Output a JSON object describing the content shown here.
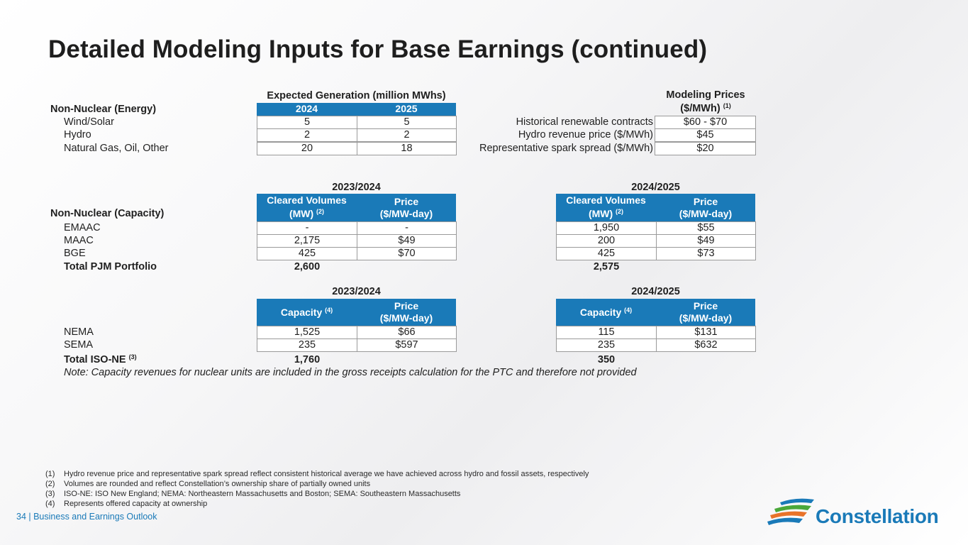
{
  "title": "Detailed Modeling Inputs for Base Earnings (continued)",
  "energy": {
    "section_label": "Non-Nuclear (Energy)",
    "group_header": "Expected Generation (million MWhs)",
    "years": [
      "2024",
      "2025"
    ],
    "rows": [
      {
        "label": "Wind/Solar",
        "v2024": "5",
        "v2025": "5"
      },
      {
        "label": "Hydro",
        "v2024": "2",
        "v2025": "2"
      },
      {
        "label": "Natural Gas, Oil, Other",
        "v2024": "20",
        "v2025": "18"
      }
    ]
  },
  "prices": {
    "header_line1": "Modeling Prices",
    "header_line2": "($/MWh)",
    "header_sup": "(1)",
    "rows": [
      {
        "label": "Historical renewable contracts",
        "value": "$60 - $70"
      },
      {
        "label": "Hydro revenue price ($/MWh)",
        "value": "$45"
      },
      {
        "label": "Representative spark spread ($/MWh)",
        "value": "$20"
      }
    ]
  },
  "pjm": {
    "section_label": "Non-Nuclear (Capacity)",
    "period_a": "2023/2024",
    "period_b": "2024/2025",
    "col1_line1": "Cleared Volumes",
    "col1_line2": "(MW)",
    "col1_sup": "(2)",
    "col2_line1": "Price",
    "col2_line2": "($/MW-day)",
    "rows": [
      {
        "label": "EMAAC",
        "a_vol": "-",
        "a_price": "-",
        "b_vol": "1,950",
        "b_price": "$55"
      },
      {
        "label": "MAAC",
        "a_vol": "2,175",
        "a_price": "$49",
        "b_vol": "200",
        "b_price": "$49"
      },
      {
        "label": "BGE",
        "a_vol": "425",
        "a_price": "$70",
        "b_vol": "425",
        "b_price": "$73"
      }
    ],
    "total_label": "Total PJM Portfolio",
    "total_a": "2,600",
    "total_b": "2,575"
  },
  "isone": {
    "period_a": "2023/2024",
    "period_b": "2024/2025",
    "col1_label": "Capacity",
    "col1_sup": "(4)",
    "col2_line1": "Price",
    "col2_line2": "($/MW-day)",
    "rows": [
      {
        "label": "NEMA",
        "a_cap": "1,525",
        "a_price": "$66",
        "b_cap": "115",
        "b_price": "$131"
      },
      {
        "label": "SEMA",
        "a_cap": "235",
        "a_price": "$597",
        "b_cap": "235",
        "b_price": "$632"
      }
    ],
    "total_label": "Total ISO-NE",
    "total_sup": "(3)",
    "total_a": "1,760",
    "total_b": "350"
  },
  "note": "Note: Capacity revenues for nuclear units are included in the gross receipts calculation for the PTC and therefore not provided",
  "footnotes": [
    {
      "num": "(1)",
      "text": "Hydro revenue price and representative spark spread reflect consistent historical average we have achieved across hydro and fossil assets, respectively"
    },
    {
      "num": "(2)",
      "text": "Volumes are rounded and reflect Constellation’s ownership share of partially owned units"
    },
    {
      "num": "(3)",
      "text": "ISO-NE: ISO New England; NEMA: Northeastern Massachusetts and Boston; SEMA: Southeastern Massachusetts"
    },
    {
      "num": "(4)",
      "text": "Represents offered capacity at ownership"
    }
  ],
  "footer": "34 | Business and Earnings Outlook",
  "logo_text": "Constellation",
  "colors": {
    "accent": "#1a7ab8",
    "logo_green": "#4aa83a",
    "logo_orange": "#e8732a",
    "logo_blue": "#1a7ab8"
  }
}
